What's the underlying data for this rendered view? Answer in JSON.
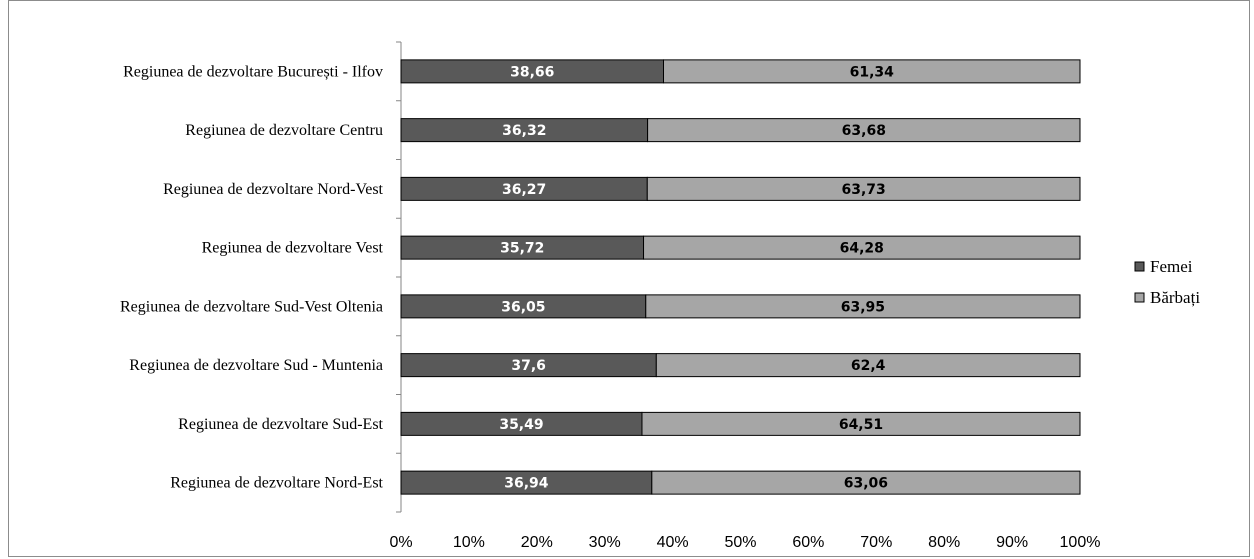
{
  "chart_data": {
    "type": "bar",
    "orientation": "horizontal",
    "stacked": "percent",
    "categories": [
      "Regiunea de dezvoltare București - Ilfov",
      "Regiunea de dezvoltare Centru",
      "Regiunea de dezvoltare Nord-Vest",
      "Regiunea de dezvoltare Vest",
      "Regiunea de dezvoltare Sud-Vest Oltenia",
      "Regiunea de dezvoltare Sud - Muntenia",
      "Regiunea de dezvoltare Sud-Est",
      "Regiunea de dezvoltare Nord-Est"
    ],
    "series": [
      {
        "name": "Femei",
        "color": "#595959",
        "label_color": "#ffffff",
        "values": [
          38.66,
          36.32,
          36.27,
          35.72,
          36.05,
          37.6,
          35.49,
          36.94
        ],
        "labels": [
          "38,66",
          "36,32",
          "36,27",
          "35,72",
          "36,05",
          "37,6",
          "35,49",
          "36,94"
        ]
      },
      {
        "name": "Bărbați",
        "color": "#a6a6a6",
        "label_color": "#000000",
        "values": [
          61.34,
          63.68,
          63.73,
          64.28,
          63.95,
          62.4,
          64.51,
          63.06
        ],
        "labels": [
          "61,34",
          "63,68",
          "63,73",
          "64,28",
          "63,95",
          "62,4",
          "64,51",
          "63,06"
        ]
      }
    ],
    "xlim": [
      0,
      100
    ],
    "x_ticks": [
      "0%",
      "10%",
      "20%",
      "30%",
      "40%",
      "50%",
      "60%",
      "70%",
      "80%",
      "90%",
      "100%"
    ],
    "grid": false,
    "legend_position": "right",
    "title": "",
    "xlabel": "",
    "ylabel": ""
  }
}
